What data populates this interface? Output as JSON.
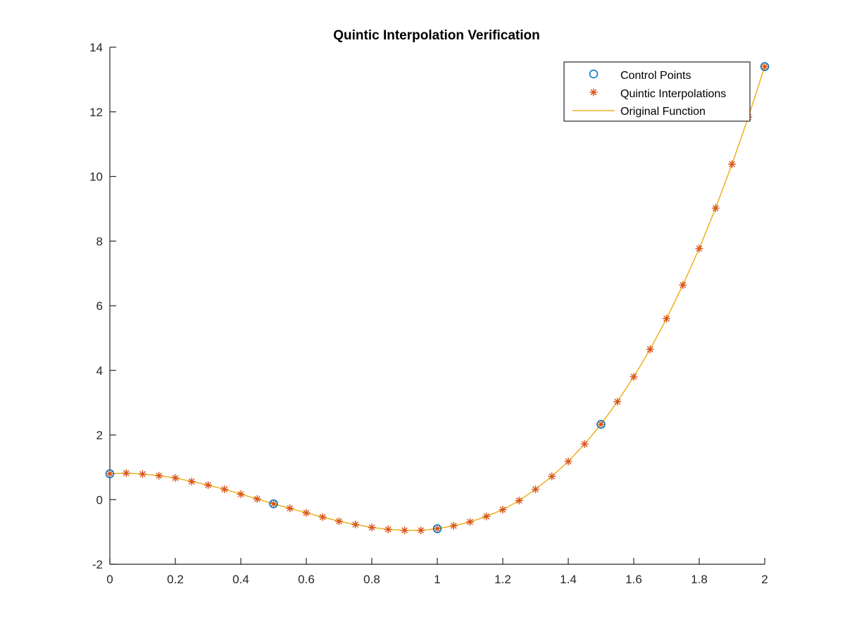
{
  "chart_data": {
    "type": "line",
    "title": "Quintic Interpolation Verification",
    "xlabel": "",
    "ylabel": "",
    "xlim": [
      0,
      2
    ],
    "ylim": [
      -2,
      14
    ],
    "x_ticks": [
      "0",
      "0.2",
      "0.4",
      "0.6",
      "0.8",
      "1",
      "1.2",
      "1.4",
      "1.6",
      "1.8",
      "2"
    ],
    "y_ticks": [
      "-2",
      "0",
      "2",
      "4",
      "6",
      "8",
      "10",
      "12",
      "14"
    ],
    "grid": false,
    "legend_position": "top-right",
    "series": [
      {
        "name": "Control Points",
        "style": "marker-circle",
        "color": "#0072BD",
        "x": [
          0,
          0.5,
          1.0,
          1.5,
          2.0
        ],
        "y": [
          0.8,
          -0.13,
          -0.9,
          2.33,
          13.4
        ]
      },
      {
        "name": "Quintic Interpolations",
        "style": "marker-asterisk",
        "color": "#D95319",
        "x": [
          0,
          0.05,
          0.1,
          0.15,
          0.2,
          0.25,
          0.3,
          0.35,
          0.4,
          0.45,
          0.5,
          0.55,
          0.6,
          0.65,
          0.7,
          0.75,
          0.8,
          0.85,
          0.9,
          0.95,
          1.0,
          1.05,
          1.1,
          1.15,
          1.2,
          1.25,
          1.3,
          1.35,
          1.4,
          1.45,
          1.5,
          1.55,
          1.6,
          1.65,
          1.7,
          1.75,
          1.8,
          1.85,
          1.9,
          1.95,
          2.0
        ],
        "y": [
          0.8,
          0.82,
          0.79,
          0.74,
          0.67,
          0.56,
          0.45,
          0.32,
          0.17,
          0.02,
          -0.13,
          -0.27,
          -0.41,
          -0.54,
          -0.67,
          -0.77,
          -0.86,
          -0.92,
          -0.95,
          -0.95,
          -0.9,
          -0.81,
          -0.69,
          -0.52,
          -0.31,
          -0.03,
          0.32,
          0.72,
          1.18,
          1.72,
          2.33,
          3.03,
          3.8,
          4.65,
          5.6,
          6.64,
          7.77,
          9.02,
          10.38,
          11.84,
          13.4
        ]
      },
      {
        "name": "Original Function",
        "style": "line",
        "color": "#EDB120",
        "x": [
          0,
          0.05,
          0.1,
          0.15,
          0.2,
          0.25,
          0.3,
          0.35,
          0.4,
          0.45,
          0.5,
          0.55,
          0.6,
          0.65,
          0.7,
          0.75,
          0.8,
          0.85,
          0.9,
          0.95,
          1.0,
          1.05,
          1.1,
          1.15,
          1.2,
          1.25,
          1.3,
          1.35,
          1.4,
          1.45,
          1.5,
          1.55,
          1.6,
          1.65,
          1.7,
          1.75,
          1.8,
          1.85,
          1.9,
          1.95,
          2.0
        ],
        "y": [
          0.8,
          0.82,
          0.79,
          0.74,
          0.67,
          0.56,
          0.45,
          0.32,
          0.17,
          0.02,
          -0.13,
          -0.27,
          -0.41,
          -0.54,
          -0.67,
          -0.77,
          -0.86,
          -0.92,
          -0.95,
          -0.95,
          -0.9,
          -0.81,
          -0.69,
          -0.52,
          -0.31,
          -0.03,
          0.32,
          0.72,
          1.18,
          1.72,
          2.33,
          3.03,
          3.8,
          4.65,
          5.6,
          6.64,
          7.77,
          9.02,
          10.38,
          11.84,
          13.4
        ]
      }
    ]
  }
}
